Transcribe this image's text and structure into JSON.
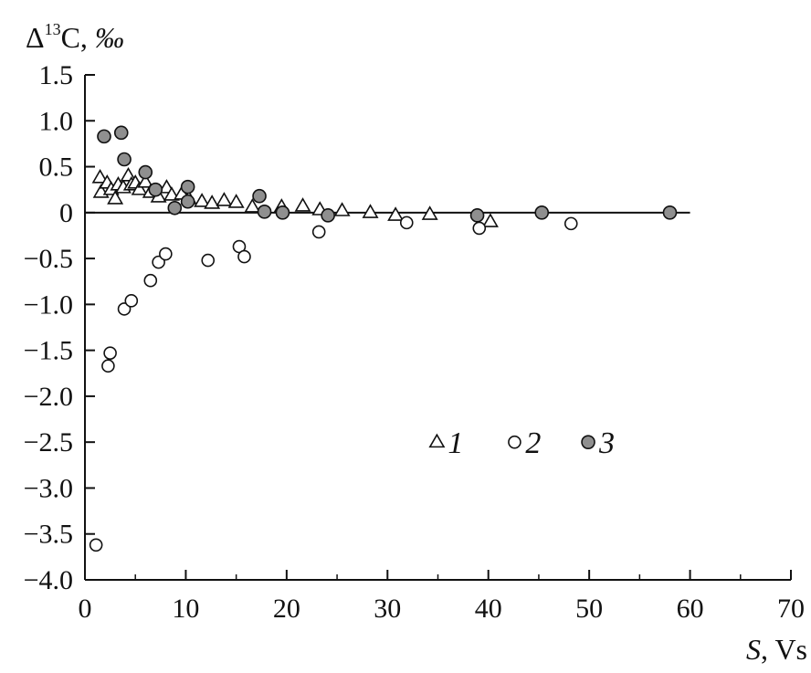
{
  "chart_data": {
    "type": "scatter",
    "ylabel": {
      "prefix": "Δ",
      "sup": "13",
      "element": "C, ",
      "unit": "‰"
    },
    "xlabel": {
      "var": "S",
      "unit": ", Vs"
    },
    "xlim": [
      0,
      70
    ],
    "ylim": [
      -4.0,
      1.5
    ],
    "xticks": [
      0,
      10,
      20,
      30,
      40,
      50,
      60,
      70
    ],
    "yticks": [
      1.5,
      1.0,
      0.5,
      0,
      -0.5,
      -1.0,
      -1.5,
      -2.0,
      -2.5,
      -3.0,
      -3.5,
      -4.0
    ],
    "ytick_labels": [
      "1.5",
      "1.0",
      "0.5",
      "0",
      "−0.5",
      "−1.0",
      "−1.5",
      "−2.0",
      "−2.5",
      "−3.0",
      "−3.5",
      "−4.0"
    ],
    "reference_line": {
      "y": 0,
      "x_range": [
        0,
        60
      ]
    },
    "legend_position": "center-right",
    "colors": {
      "series3_fill": "#8f8f8f",
      "series2_fill": "#ffffff",
      "series1_fill": "#ffffff",
      "ink": "#111111"
    },
    "series": [
      {
        "name": "1",
        "marker": "triangle",
        "points": [
          [
            1.5,
            0.38
          ],
          [
            1.6,
            0.22
          ],
          [
            2.2,
            0.32
          ],
          [
            2.6,
            0.25
          ],
          [
            3.0,
            0.15
          ],
          [
            3.3,
            0.3
          ],
          [
            3.8,
            0.27
          ],
          [
            4.3,
            0.4
          ],
          [
            4.6,
            0.3
          ],
          [
            5.0,
            0.32
          ],
          [
            5.4,
            0.25
          ],
          [
            6.0,
            0.33
          ],
          [
            6.5,
            0.22
          ],
          [
            7.3,
            0.17
          ],
          [
            8.1,
            0.27
          ],
          [
            8.6,
            0.19
          ],
          [
            9.6,
            0.2
          ],
          [
            10.3,
            0.15
          ],
          [
            11.6,
            0.12
          ],
          [
            12.6,
            0.1
          ],
          [
            13.8,
            0.13
          ],
          [
            15.0,
            0.11
          ],
          [
            16.6,
            0.06
          ],
          [
            19.5,
            0.06
          ],
          [
            21.6,
            0.07
          ],
          [
            23.3,
            0.03
          ],
          [
            25.5,
            0.02
          ],
          [
            28.3,
            0.0
          ],
          [
            30.8,
            -0.03
          ],
          [
            34.2,
            -0.02
          ],
          [
            40.2,
            -0.1
          ]
        ]
      },
      {
        "name": "2",
        "marker": "open-circle",
        "points": [
          [
            1.1,
            -3.62
          ],
          [
            2.3,
            -1.67
          ],
          [
            2.5,
            -1.53
          ],
          [
            3.9,
            -1.05
          ],
          [
            4.6,
            -0.96
          ],
          [
            6.5,
            -0.74
          ],
          [
            7.3,
            -0.54
          ],
          [
            8.0,
            -0.45
          ],
          [
            12.2,
            -0.52
          ],
          [
            15.3,
            -0.37
          ],
          [
            15.8,
            -0.48
          ],
          [
            23.2,
            -0.21
          ],
          [
            31.9,
            -0.11
          ],
          [
            39.1,
            -0.17
          ],
          [
            48.2,
            -0.12
          ]
        ]
      },
      {
        "name": "3",
        "marker": "filled-circle",
        "points": [
          [
            1.9,
            0.83
          ],
          [
            3.6,
            0.87
          ],
          [
            3.9,
            0.58
          ],
          [
            6.0,
            0.44
          ],
          [
            7.0,
            0.25
          ],
          [
            8.9,
            0.05
          ],
          [
            10.2,
            0.28
          ],
          [
            10.2,
            0.12
          ],
          [
            17.3,
            0.18
          ],
          [
            17.8,
            0.01
          ],
          [
            19.6,
            0.0
          ],
          [
            24.1,
            -0.03
          ],
          [
            38.9,
            -0.03
          ],
          [
            45.3,
            0.0
          ],
          [
            58.0,
            0.0
          ]
        ]
      }
    ]
  }
}
